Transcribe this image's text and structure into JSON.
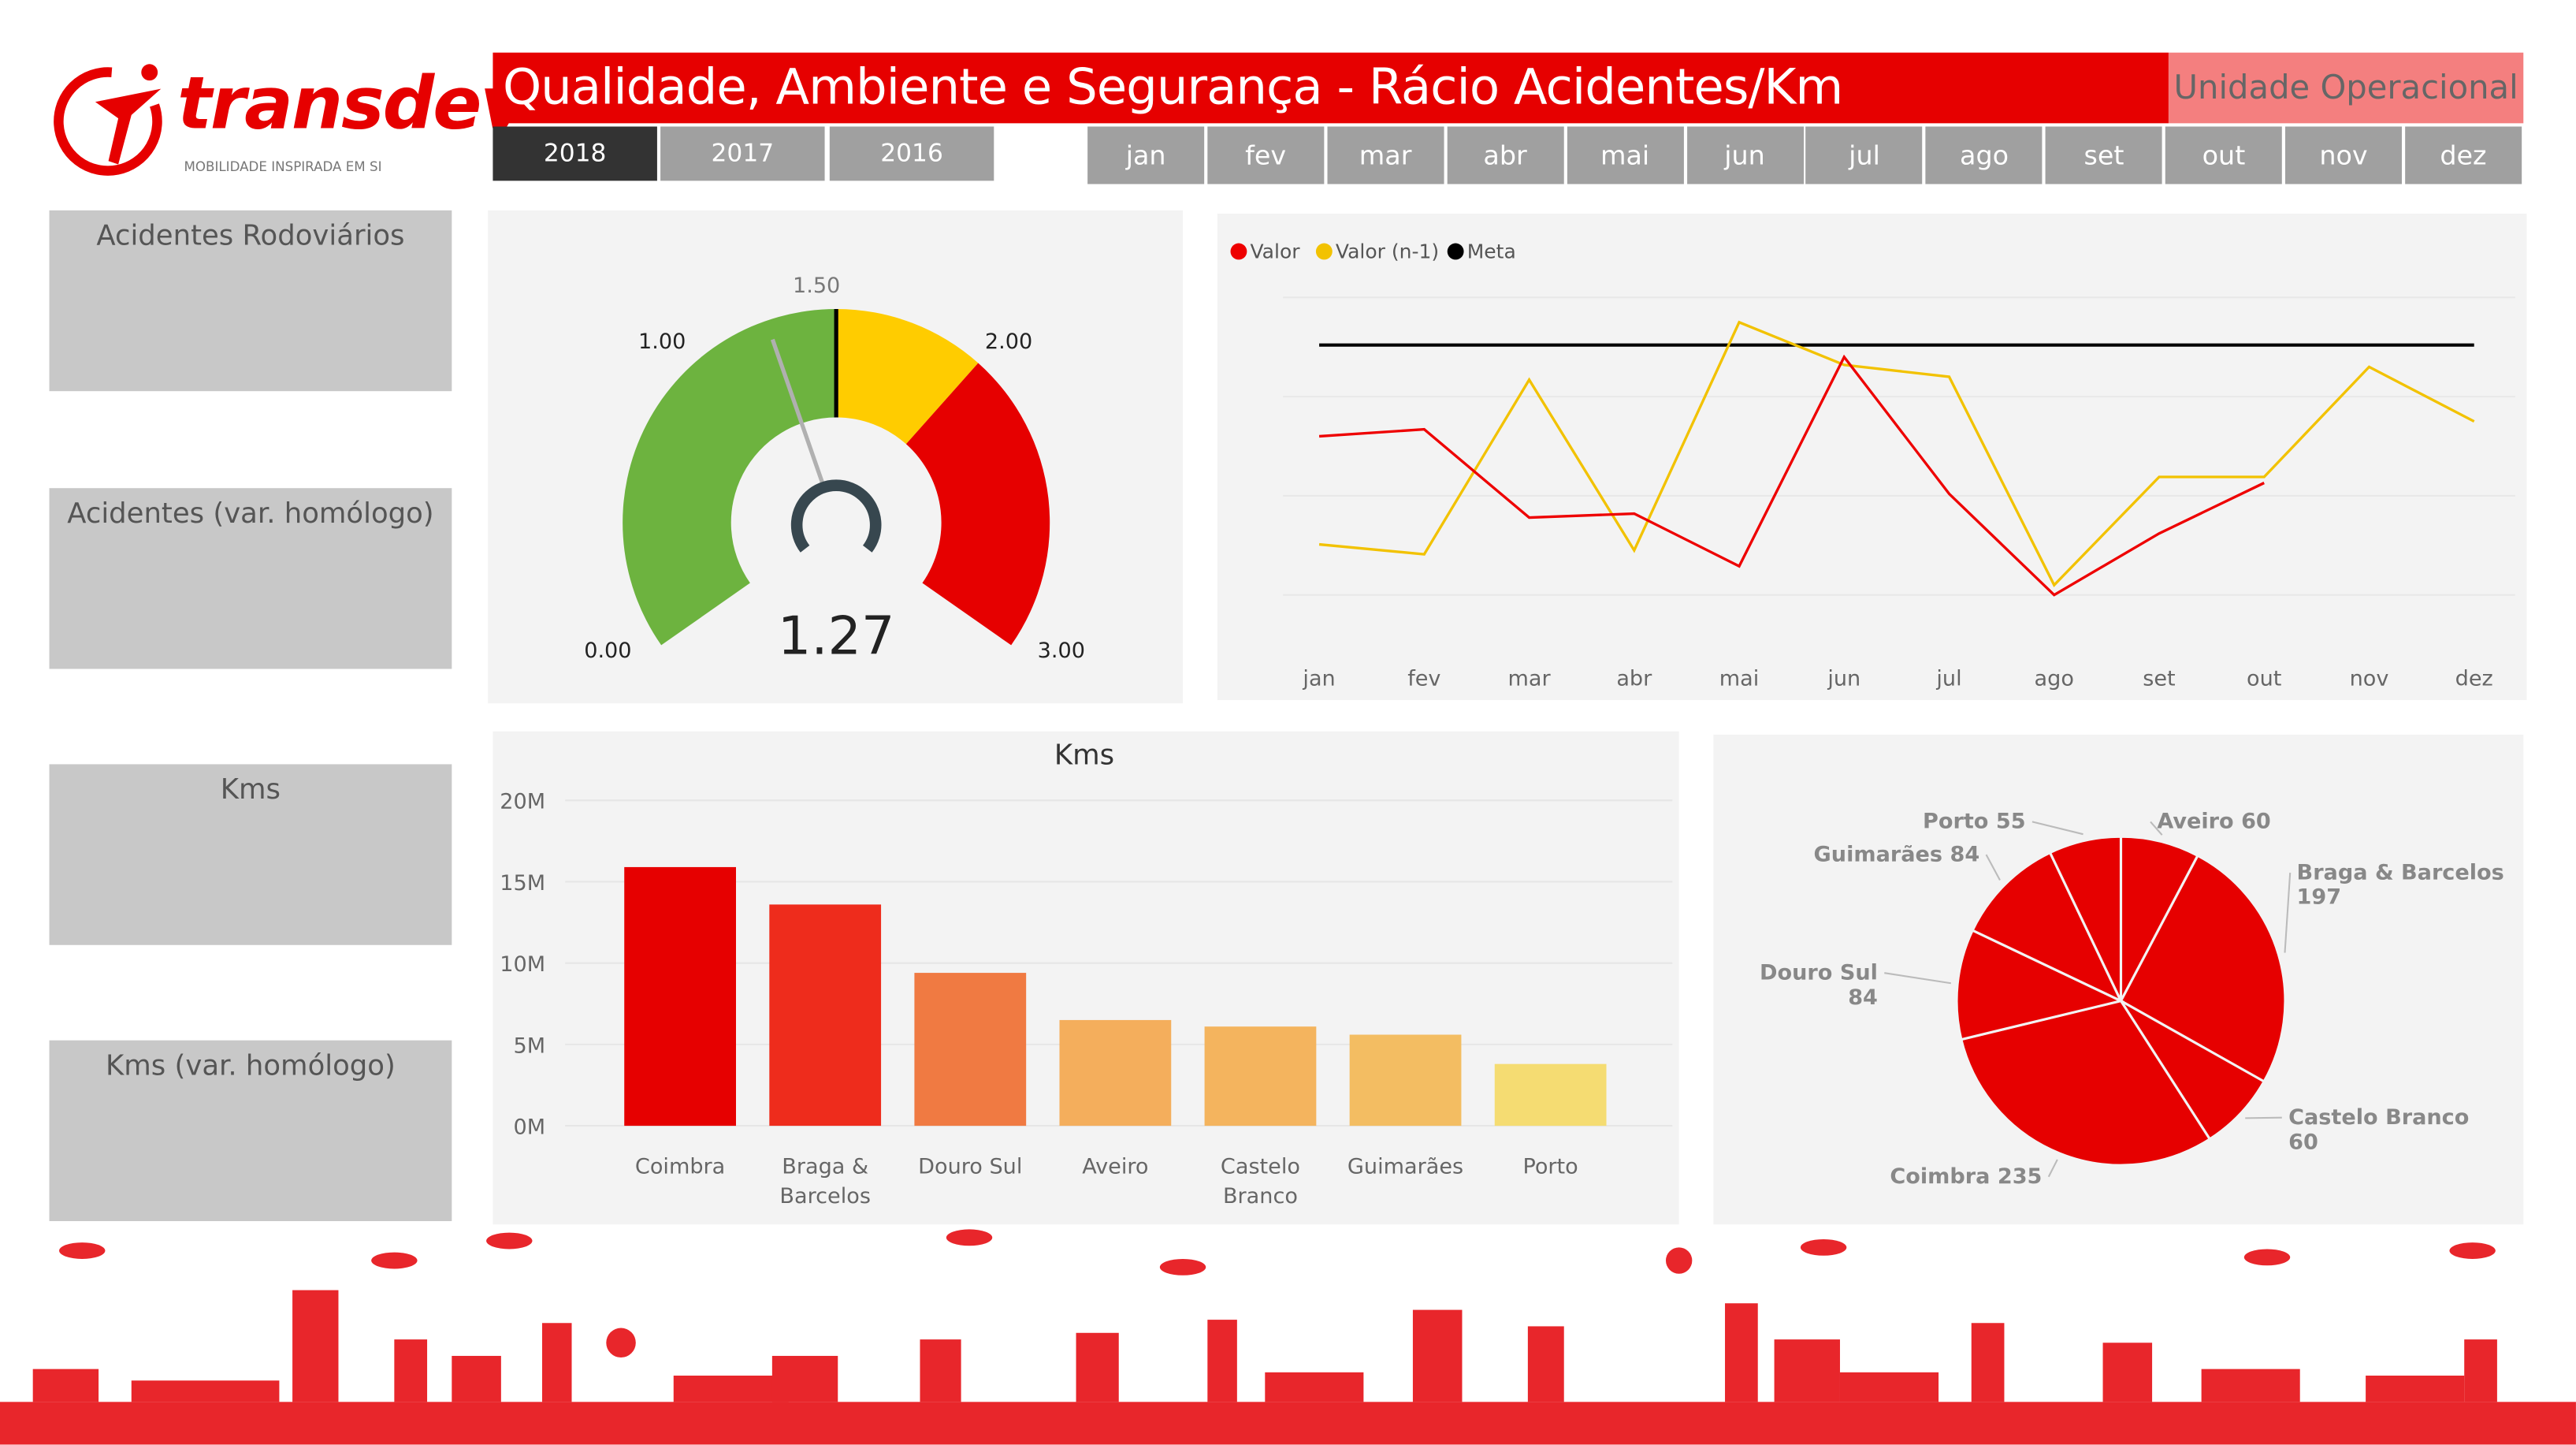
{
  "logo": {
    "brand": "transdev",
    "tagline": "MOBILIDADE INSPIRADA EM SI"
  },
  "header": {
    "title": "Qualidade, Ambiente e Segurança - Rácio Acidentes/Km",
    "unit_button": "Unidade Operacional"
  },
  "years": [
    {
      "label": "2018",
      "selected": true
    },
    {
      "label": "2017",
      "selected": false
    },
    {
      "label": "2016",
      "selected": false
    }
  ],
  "months": [
    "jan",
    "fev",
    "mar",
    "abr",
    "mai",
    "jun",
    "jul",
    "ago",
    "set",
    "out",
    "nov",
    "dez"
  ],
  "cards": [
    {
      "title": "Acidentes Rodoviários"
    },
    {
      "title": "Acidentes (var. homólogo)"
    },
    {
      "title": "Kms"
    },
    {
      "title": "Kms (var. homólogo)"
    }
  ],
  "colors": {
    "brand_red": "#e60000",
    "green": "#6db33f",
    "yellow": "#ffcc00",
    "valor": "#ee0000",
    "valor_n1": "#f2c200",
    "meta": "#000000"
  },
  "chart_data": [
    {
      "type": "gauge",
      "value": 1.27,
      "value_label": "1.27",
      "min": 0,
      "max": 3,
      "target": 1.5,
      "bands": [
        {
          "from": 0,
          "to": 1.5,
          "color": "#6db33f"
        },
        {
          "from": 1.5,
          "to": 2.0,
          "color": "#ffcc00"
        },
        {
          "from": 2.0,
          "to": 3.0,
          "color": "#e60000"
        }
      ],
      "tick_labels": [
        "0.00",
        "1.00",
        "1.50",
        "2.00",
        "3.00"
      ]
    },
    {
      "type": "line",
      "categories": [
        "jan",
        "fev",
        "mar",
        "abr",
        "mai",
        "jun",
        "jul",
        "ago",
        "set",
        "out",
        "nov",
        "dez"
      ],
      "series": [
        {
          "name": "Valor",
          "color": "#ee0000",
          "values": [
            1.6,
            1.67,
            0.78,
            0.82,
            0.29,
            2.4,
            1.02,
            0.0,
            0.62,
            1.13,
            null,
            null
          ]
        },
        {
          "name": "Valor (n-1)",
          "color": "#f2c200",
          "values": [
            0.51,
            0.41,
            2.17,
            0.45,
            2.75,
            2.32,
            2.2,
            0.1,
            1.19,
            1.19,
            2.3,
            1.75
          ]
        },
        {
          "name": "Meta",
          "color": "#000000",
          "values": [
            2.52,
            2.52,
            2.52,
            2.52,
            2.52,
            2.52,
            2.52,
            2.52,
            2.52,
            2.52,
            2.52,
            2.52
          ]
        }
      ],
      "ylim": [
        0,
        3
      ],
      "grid": true,
      "legend": "top-left"
    },
    {
      "type": "bar",
      "title": "Kms",
      "categories": [
        "Coimbra",
        "Braga & Barcelos",
        "Douro Sul",
        "Aveiro",
        "Castelo Branco",
        "Guimarães",
        "Porto"
      ],
      "category_lines": [
        [
          "Coimbra"
        ],
        [
          "Braga &",
          "Barcelos"
        ],
        [
          "Douro Sul"
        ],
        [
          "Aveiro"
        ],
        [
          "Castelo",
          "Branco"
        ],
        [
          "Guimarães"
        ],
        [
          "Porto"
        ]
      ],
      "values": [
        15.9,
        13.6,
        9.4,
        6.5,
        6.1,
        5.6,
        3.8
      ],
      "colors": [
        "#e60000",
        "#ee2c1c",
        "#f07a42",
        "#f4ae5c",
        "#f4b45e",
        "#f3bd62",
        "#f5dc72"
      ],
      "yticks": [
        "0M",
        "5M",
        "10M",
        "15M",
        "20M"
      ],
      "ylim": [
        0,
        20
      ],
      "unit": "M",
      "grid": true
    },
    {
      "type": "pie",
      "slices": [
        {
          "label": "Aveiro",
          "value": 60,
          "text": [
            "Aveiro 60"
          ]
        },
        {
          "label": "Braga & Barcelos",
          "value": 197,
          "text": [
            "Braga & Barcelos",
            "197"
          ]
        },
        {
          "label": "Castelo Branco",
          "value": 60,
          "text": [
            "Castelo Branco",
            "60"
          ]
        },
        {
          "label": "Coimbra",
          "value": 235,
          "text": [
            "Coimbra 235"
          ]
        },
        {
          "label": "Douro Sul",
          "value": 84,
          "text": [
            "Douro Sul",
            "84"
          ]
        },
        {
          "label": "Guimarães",
          "value": 84,
          "text": [
            "Guimarães 84"
          ]
        },
        {
          "label": "Porto",
          "value": 55,
          "text": [
            "Porto 55"
          ]
        }
      ],
      "color": "#e60000"
    }
  ]
}
